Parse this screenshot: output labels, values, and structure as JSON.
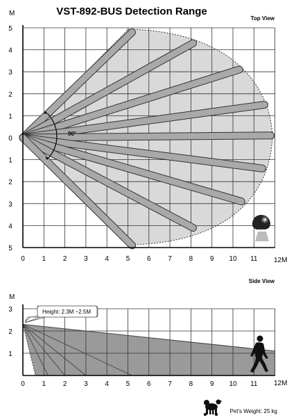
{
  "title": "VST-892-BUS Detection Range",
  "top_view": {
    "label": "Top View",
    "y_unit": "M",
    "x_unit": "12M",
    "x_ticks": [
      "0",
      "1",
      "2",
      "3",
      "4",
      "5",
      "6",
      "7",
      "8",
      "9",
      "10",
      "11"
    ],
    "y_ticks": [
      "5",
      "4",
      "3",
      "2",
      "1",
      "0",
      "1",
      "2",
      "3",
      "4",
      "5"
    ],
    "angle_label": "90°",
    "beams_end_m": [
      [
        5.2,
        4.8
      ],
      [
        8.1,
        4.3
      ],
      [
        10.3,
        3.1
      ],
      [
        11.5,
        1.5
      ],
      [
        11.8,
        0.1
      ],
      [
        11.4,
        -1.4
      ],
      [
        10.4,
        -2.9
      ],
      [
        8.1,
        -4.1
      ],
      [
        5.2,
        -4.9
      ]
    ],
    "icon": "motion-sensor-icon"
  },
  "side_view": {
    "label": "Side View",
    "y_unit": "M",
    "x_unit": "12M",
    "x_ticks": [
      "0",
      "1",
      "2",
      "3",
      "4",
      "5",
      "6",
      "7",
      "8",
      "9",
      "10",
      "11"
    ],
    "y_ticks": [
      "3",
      "2",
      "1"
    ],
    "mount_height_label": "Height: 2.3M ~2.5M",
    "mount_height_m": 2.3,
    "far_edge_height_m": 1.1,
    "ray_ends_x_m": [
      1.2,
      2.0,
      3.0,
      5.2
    ],
    "icon": "walking-person-icon"
  },
  "footer": {
    "pet_weight_label": "Pet's Weight: 25 kg",
    "icon": "dog-icon"
  }
}
